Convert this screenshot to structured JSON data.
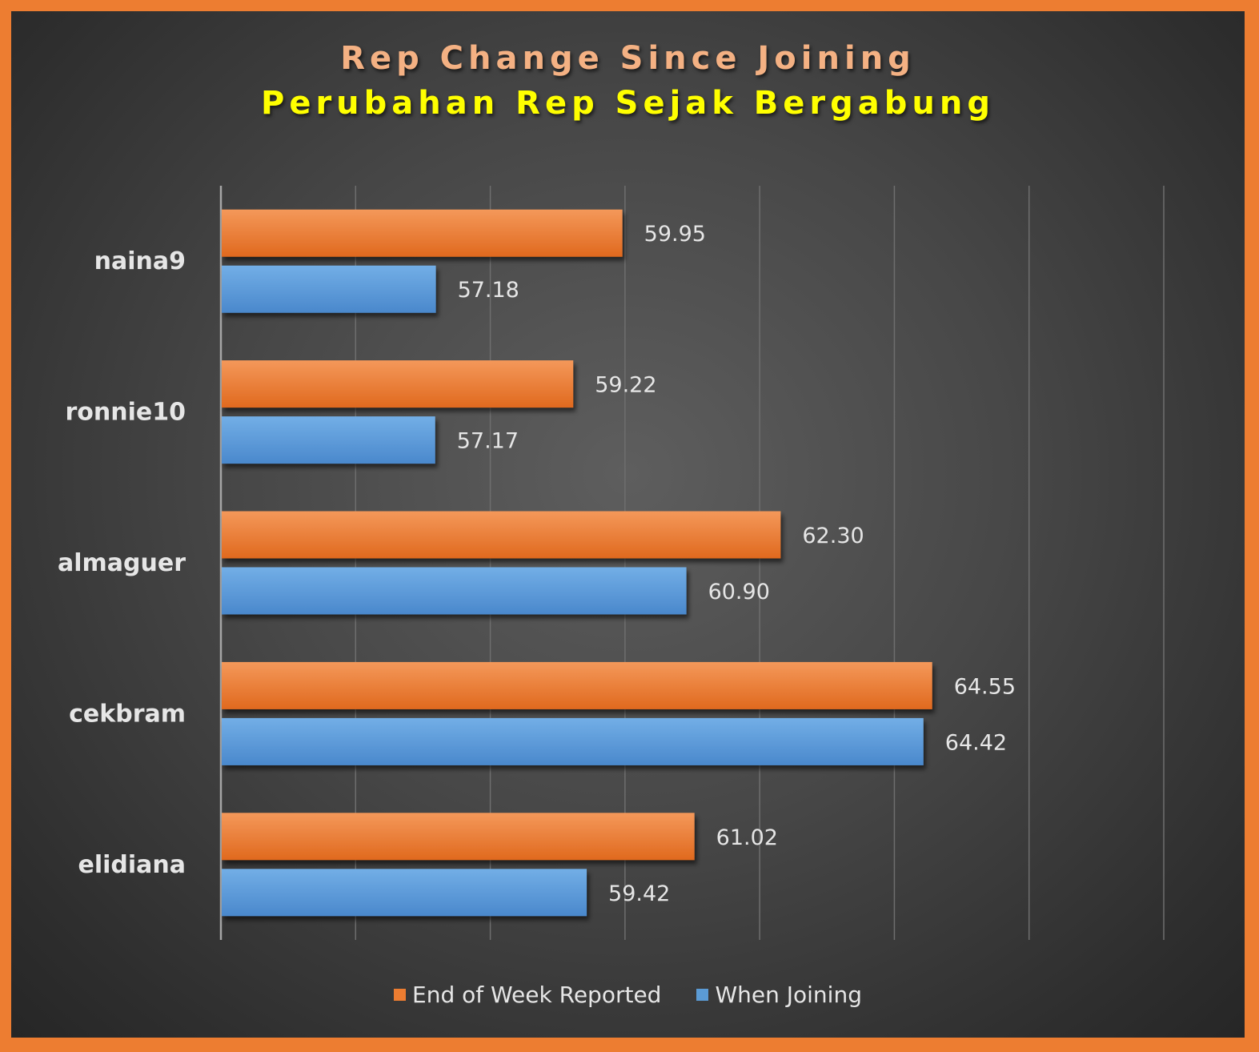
{
  "colors": {
    "border": "#ed7d31",
    "title1": "#f4b183",
    "title2": "#ffff00",
    "series1": "#ed7d31",
    "series2": "#5b9bd5"
  },
  "chart_data": {
    "type": "bar",
    "orientation": "horizontal",
    "title": "Rep Change Since Joining",
    "subtitle": "Perubahan Rep Sejak Bergabung",
    "categories": [
      "naina9",
      "ronnie10",
      "almaguer",
      "cekbram",
      "elidiana"
    ],
    "series": [
      {
        "name": "End of Week Reported",
        "values": [
          59.95,
          59.22,
          62.3,
          64.55,
          61.02
        ],
        "labels": [
          "59.95",
          "59.22",
          "62.30",
          "64.55",
          "61.02"
        ]
      },
      {
        "name": "When Joining",
        "values": [
          57.18,
          57.17,
          60.9,
          64.42,
          59.42
        ],
        "labels": [
          "57.18",
          "57.17",
          "60.90",
          "64.42",
          "59.42"
        ]
      }
    ],
    "xlim": [
      54,
      68
    ],
    "grid": true,
    "legend_position": "bottom"
  }
}
